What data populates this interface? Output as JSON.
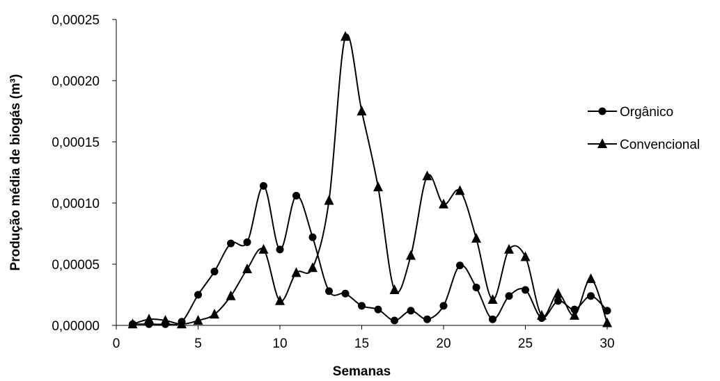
{
  "chart_data": {
    "type": "line",
    "title": "",
    "xlabel": "Semanas",
    "ylabel": "Produção média de biogás (m³)",
    "xlim": [
      0,
      30
    ],
    "ylim": [
      0,
      0.00025
    ],
    "xticks": [
      0,
      5,
      10,
      15,
      20,
      25,
      30
    ],
    "xtick_labels": [
      "0",
      "5",
      "10",
      "15",
      "20",
      "25",
      "30"
    ],
    "yticks": [
      0,
      5e-05,
      0.0001,
      0.00015,
      0.0002,
      0.00025
    ],
    "ytick_labels": [
      "0,00000",
      "0,00005",
      "0,00010",
      "0,00015",
      "0,00020",
      "0,00025"
    ],
    "grid": false,
    "legend_position": "right",
    "smooth": true,
    "x": [
      1,
      2,
      3,
      4,
      5,
      6,
      7,
      8,
      9,
      10,
      11,
      12,
      13,
      14,
      15,
      16,
      17,
      18,
      19,
      20,
      21,
      22,
      23,
      24,
      25,
      26,
      27,
      28,
      29,
      30
    ],
    "series": [
      {
        "name": "Orgânico",
        "marker": "circle",
        "color": "#000000",
        "values": [
          1e-06,
          1e-06,
          1e-06,
          3e-06,
          2.5e-05,
          4.4e-05,
          6.7e-05,
          6.8e-05,
          0.000114,
          6.2e-05,
          0.000106,
          7.2e-05,
          2.8e-05,
          2.6e-05,
          1.6e-05,
          1.3e-05,
          4e-06,
          1.2e-05,
          5e-06,
          1.6e-05,
          4.9e-05,
          3.1e-05,
          5e-06,
          2.4e-05,
          2.9e-05,
          6e-06,
          2e-05,
          1.3e-05,
          2.4e-05,
          1.2e-05
        ]
      },
      {
        "name": "Convencional",
        "marker": "triangle",
        "color": "#000000",
        "values": [
          1e-06,
          5e-06,
          4e-06,
          1e-06,
          4e-06,
          9e-06,
          2.4e-05,
          4.6e-05,
          6.2e-05,
          2e-05,
          4.3e-05,
          4.7e-05,
          0.000102,
          0.000236,
          0.000175,
          0.000113,
          2.9e-05,
          5.7e-05,
          0.000122,
          9.9e-05,
          0.00011,
          7.1e-05,
          2.1e-05,
          6.2e-05,
          5.6e-05,
          8e-06,
          2.6e-05,
          8e-06,
          3.8e-05,
          2e-06
        ]
      }
    ]
  }
}
